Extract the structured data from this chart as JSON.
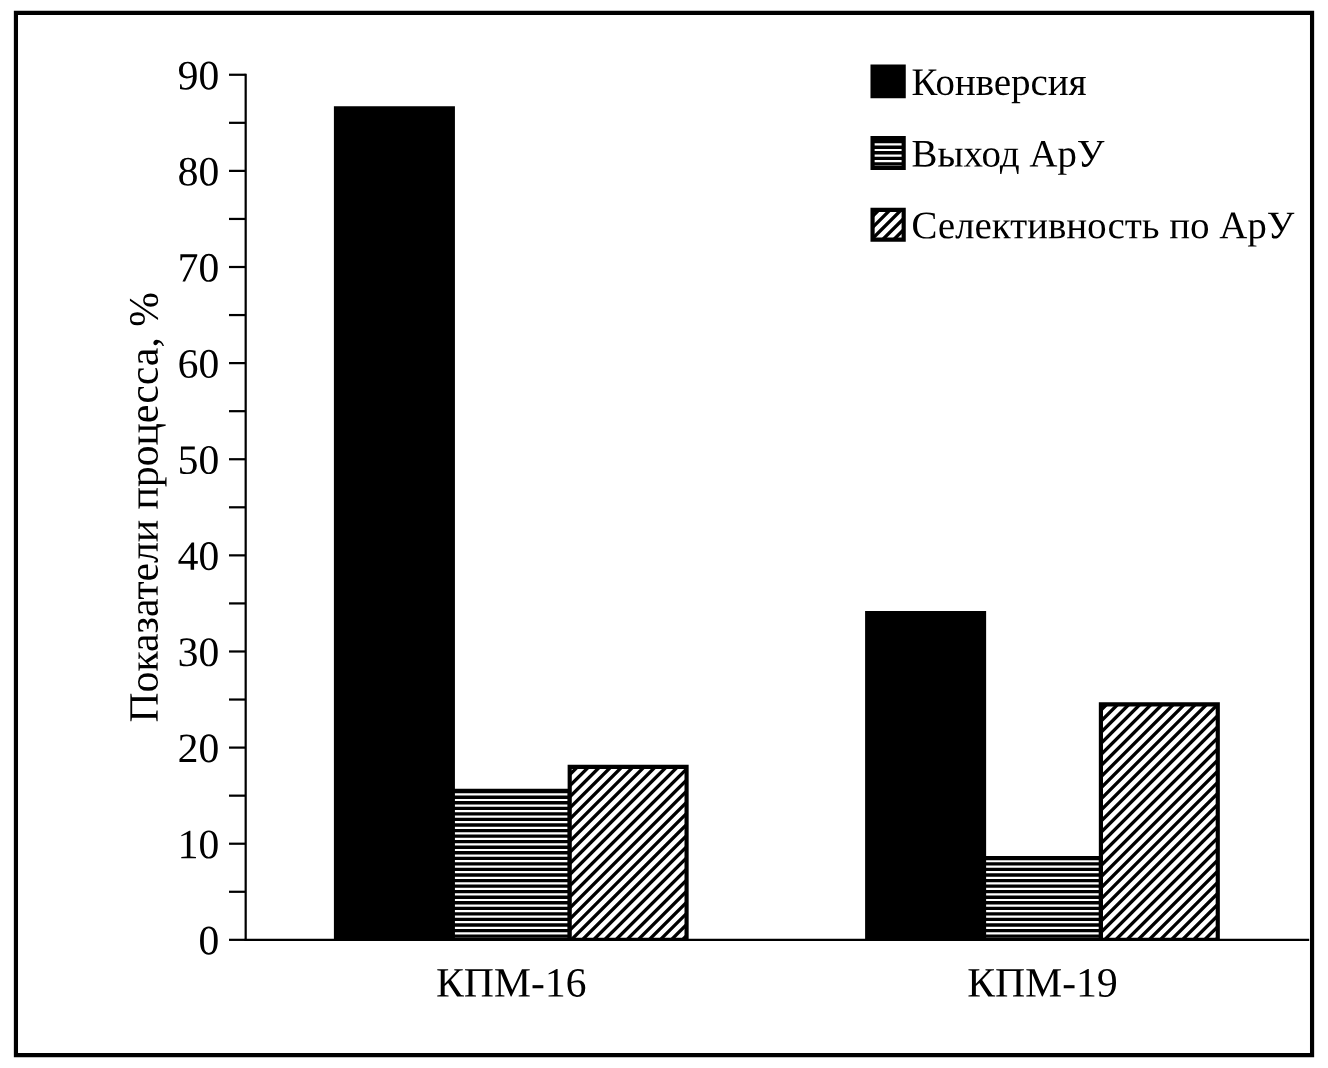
{
  "chart_data": {
    "type": "bar",
    "ylabel": "Показатели процесса, %",
    "categories": [
      "КПМ-16",
      "КПМ-19"
    ],
    "series": [
      {
        "name": "Конверсия",
        "color": "#000000",
        "values": [
          86.5,
          34
        ]
      },
      {
        "name": "Выход АрУ",
        "color": "#000000",
        "values": [
          15.5,
          8.5
        ]
      },
      {
        "name": "Селективность по АрУ",
        "color": "#000000",
        "values": [
          18,
          24.5
        ]
      }
    ],
    "ylim": [
      0,
      90
    ],
    "yticks": [
      0,
      {
        "value": 5,
        "label": null
      },
      10,
      {
        "value": 15,
        "label": null
      },
      20,
      {
        "value": 25,
        "label": null
      },
      30,
      {
        "value": 35,
        "label": null
      },
      40,
      {
        "value": 45,
        "label": null
      },
      50,
      {
        "value": 55,
        "label": null
      },
      60,
      {
        "value": 65,
        "label": null
      },
      70,
      {
        "value": 75,
        "label": null
      },
      80,
      {
        "value": 85,
        "label": null
      },
      90
    ],
    "grid": false,
    "legend": "top right"
  }
}
